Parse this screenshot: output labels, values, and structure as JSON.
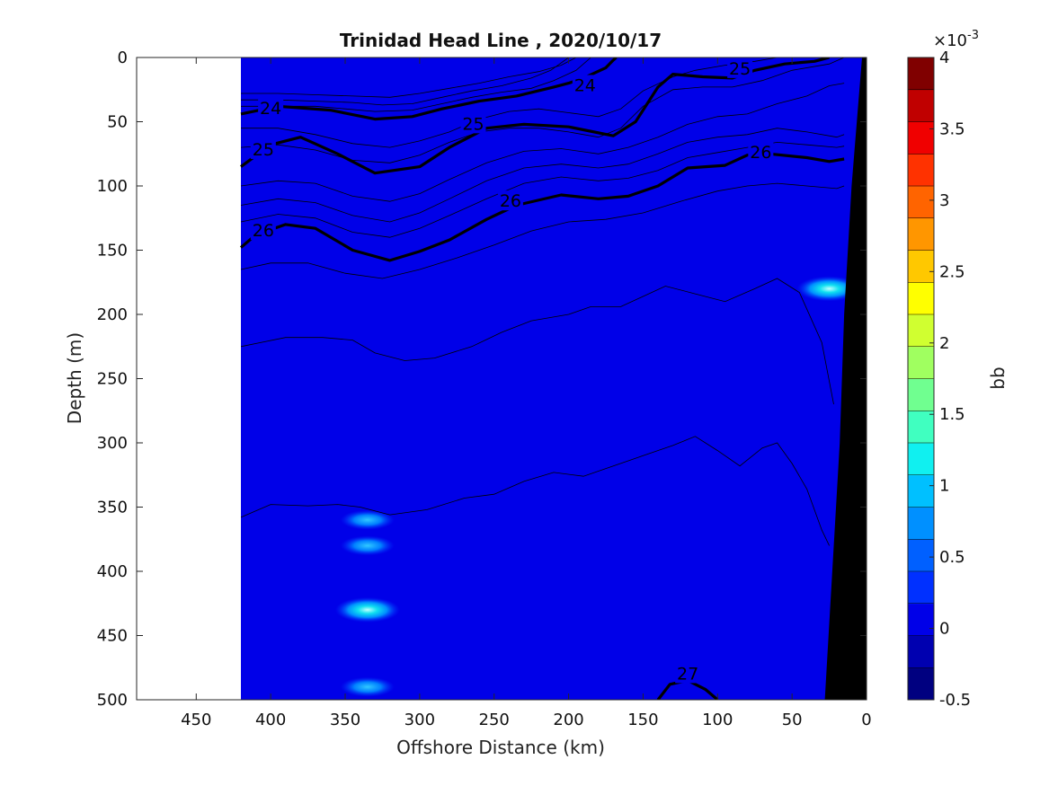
{
  "chart_data": {
    "type": "heatmap",
    "title": "Trinidad Head Line , 2020/10/17",
    "xlabel": "Offshore Distance (km)",
    "ylabel": "Depth (m)",
    "xlim": [
      490,
      0
    ],
    "ylim": [
      0,
      500
    ],
    "x_reversed": true,
    "y_reversed": true,
    "xticks": [
      450,
      400,
      350,
      300,
      250,
      200,
      150,
      100,
      50,
      0
    ],
    "yticks": [
      0,
      50,
      100,
      150,
      200,
      250,
      300,
      350,
      400,
      450,
      500
    ],
    "data_x_extent": [
      420,
      0
    ],
    "background_value_bb": 0.0002,
    "colorbar": {
      "label": "bb",
      "exponent_label": "×10",
      "exponent_power": "-3",
      "min": -0.5,
      "max": 4,
      "step": 0.25,
      "tick_values": [
        -0.5,
        0,
        0.5,
        1,
        1.5,
        2,
        2.5,
        3,
        3.5,
        4
      ],
      "tick_labels": [
        "-0.5",
        "0",
        "0.5",
        "1",
        "1.5",
        "2",
        "2.5",
        "3",
        "3.5",
        "4"
      ],
      "colors": [
        "#000080",
        "#0000b0",
        "#0000e8",
        "#0030ff",
        "#0060ff",
        "#0090ff",
        "#00c0ff",
        "#10f0f0",
        "#40ffc0",
        "#70ff90",
        "#a0ff60",
        "#d0ff30",
        "#ffff00",
        "#ffc800",
        "#ff9600",
        "#ff6400",
        "#ff3200",
        "#f00000",
        "#c00000",
        "#800000"
      ]
    },
    "hotspots": [
      {
        "x": 335,
        "depth": 360,
        "value": 0.8
      },
      {
        "x": 335,
        "depth": 380,
        "value": 0.6
      },
      {
        "x": 335,
        "depth": 430,
        "value": 1.2
      },
      {
        "x": 335,
        "depth": 490,
        "value": 0.6
      },
      {
        "x": 25,
        "depth": 180,
        "value": 1.0
      }
    ],
    "isopycnals": [
      {
        "level": "24",
        "bold": true,
        "points": [
          [
            420,
            44
          ],
          [
            395,
            38
          ],
          [
            360,
            41
          ],
          [
            330,
            48
          ],
          [
            305,
            46
          ],
          [
            285,
            40
          ],
          [
            260,
            34
          ],
          [
            235,
            30
          ],
          [
            210,
            23
          ],
          [
            200,
            20
          ],
          [
            190,
            16
          ],
          [
            175,
            8
          ],
          [
            170,
            2
          ],
          [
            168,
            0
          ]
        ]
      },
      {
        "level": "25",
        "bold": true,
        "points": [
          [
            420,
            85
          ],
          [
            400,
            68
          ],
          [
            380,
            62
          ],
          [
            355,
            75
          ],
          [
            330,
            90
          ],
          [
            300,
            85
          ],
          [
            280,
            70
          ],
          [
            255,
            55
          ],
          [
            230,
            52
          ],
          [
            200,
            54
          ],
          [
            170,
            61
          ],
          [
            155,
            50
          ],
          [
            140,
            23
          ],
          [
            130,
            13
          ],
          [
            110,
            15
          ],
          [
            90,
            16
          ],
          [
            75,
            10
          ],
          [
            55,
            5
          ],
          [
            35,
            3
          ],
          [
            25,
            0
          ]
        ]
      },
      {
        "level": "26",
        "bold": true,
        "points": [
          [
            420,
            148
          ],
          [
            410,
            138
          ],
          [
            390,
            130
          ],
          [
            370,
            133
          ],
          [
            345,
            150
          ],
          [
            320,
            158
          ],
          [
            300,
            151
          ],
          [
            280,
            142
          ],
          [
            255,
            126
          ],
          [
            235,
            115
          ],
          [
            205,
            107
          ],
          [
            180,
            110
          ],
          [
            160,
            108
          ],
          [
            140,
            100
          ],
          [
            120,
            86
          ],
          [
            95,
            84
          ],
          [
            80,
            76
          ],
          [
            65,
            75
          ],
          [
            40,
            78
          ],
          [
            25,
            81
          ],
          [
            15,
            79
          ]
        ]
      },
      {
        "level": "27",
        "bold": true,
        "points": [
          [
            140,
            500
          ],
          [
            132,
            488
          ],
          [
            120,
            485
          ],
          [
            108,
            492
          ],
          [
            100,
            500
          ]
        ]
      }
    ],
    "contours": [
      [
        [
          420,
          28
        ],
        [
          395,
          28
        ],
        [
          370,
          29
        ],
        [
          345,
          30
        ],
        [
          320,
          31
        ],
        [
          300,
          28
        ],
        [
          280,
          24
        ],
        [
          260,
          20
        ],
        [
          240,
          15
        ],
        [
          220,
          11
        ],
        [
          205,
          6
        ],
        [
          195,
          0
        ]
      ],
      [
        [
          420,
          33
        ],
        [
          395,
          33
        ],
        [
          370,
          34
        ],
        [
          345,
          35
        ],
        [
          325,
          37
        ],
        [
          305,
          36
        ],
        [
          285,
          31
        ],
        [
          265,
          26
        ],
        [
          245,
          22
        ],
        [
          225,
          16
        ],
        [
          212,
          10
        ],
        [
          200,
          0
        ]
      ],
      [
        [
          420,
          38
        ],
        [
          395,
          38
        ],
        [
          370,
          38
        ],
        [
          350,
          40
        ],
        [
          330,
          42
        ],
        [
          305,
          41
        ],
        [
          285,
          36
        ],
        [
          265,
          31
        ],
        [
          245,
          27
        ],
        [
          225,
          24
        ],
        [
          210,
          18
        ],
        [
          195,
          10
        ],
        [
          185,
          0
        ]
      ],
      [
        [
          420,
          55
        ],
        [
          395,
          55
        ],
        [
          370,
          60
        ],
        [
          345,
          67
        ],
        [
          320,
          70
        ],
        [
          300,
          65
        ],
        [
          280,
          58
        ],
        [
          260,
          48
        ],
        [
          240,
          42
        ],
        [
          220,
          40
        ],
        [
          200,
          43
        ],
        [
          180,
          46
        ],
        [
          165,
          40
        ],
        [
          150,
          26
        ],
        [
          130,
          15
        ],
        [
          115,
          10
        ],
        [
          95,
          6
        ],
        [
          75,
          3
        ],
        [
          60,
          0
        ]
      ],
      [
        [
          420,
          70
        ],
        [
          395,
          68
        ],
        [
          370,
          72
        ],
        [
          345,
          80
        ],
        [
          320,
          82
        ],
        [
          300,
          76
        ],
        [
          280,
          66
        ],
        [
          260,
          58
        ],
        [
          240,
          55
        ],
        [
          220,
          55
        ],
        [
          200,
          58
        ],
        [
          180,
          62
        ],
        [
          165,
          55
        ],
        [
          150,
          38
        ],
        [
          130,
          25
        ],
        [
          110,
          23
        ],
        [
          90,
          23
        ],
        [
          70,
          18
        ],
        [
          50,
          10
        ],
        [
          25,
          5
        ],
        [
          15,
          0
        ]
      ],
      [
        [
          420,
          100
        ],
        [
          395,
          96
        ],
        [
          370,
          98
        ],
        [
          345,
          108
        ],
        [
          320,
          112
        ],
        [
          300,
          106
        ],
        [
          280,
          95
        ],
        [
          255,
          82
        ],
        [
          230,
          73
        ],
        [
          205,
          71
        ],
        [
          180,
          75
        ],
        [
          160,
          70
        ],
        [
          140,
          62
        ],
        [
          120,
          52
        ],
        [
          100,
          46
        ],
        [
          80,
          44
        ],
        [
          60,
          36
        ],
        [
          40,
          30
        ],
        [
          25,
          22
        ],
        [
          15,
          20
        ]
      ],
      [
        [
          420,
          115
        ],
        [
          395,
          110
        ],
        [
          370,
          113
        ],
        [
          345,
          123
        ],
        [
          320,
          128
        ],
        [
          300,
          121
        ],
        [
          280,
          110
        ],
        [
          255,
          96
        ],
        [
          230,
          86
        ],
        [
          205,
          83
        ],
        [
          180,
          86
        ],
        [
          160,
          83
        ],
        [
          140,
          75
        ],
        [
          120,
          66
        ],
        [
          100,
          62
        ],
        [
          80,
          60
        ],
        [
          60,
          55
        ],
        [
          40,
          58
        ],
        [
          20,
          62
        ],
        [
          15,
          60
        ]
      ],
      [
        [
          420,
          128
        ],
        [
          395,
          122
        ],
        [
          370,
          125
        ],
        [
          345,
          136
        ],
        [
          320,
          140
        ],
        [
          300,
          133
        ],
        [
          280,
          123
        ],
        [
          255,
          110
        ],
        [
          230,
          98
        ],
        [
          205,
          93
        ],
        [
          180,
          96
        ],
        [
          160,
          94
        ],
        [
          140,
          88
        ],
        [
          120,
          78
        ],
        [
          100,
          74
        ],
        [
          80,
          70
        ],
        [
          60,
          66
        ],
        [
          40,
          68
        ],
        [
          20,
          70
        ],
        [
          15,
          69
        ]
      ],
      [
        [
          420,
          165
        ],
        [
          400,
          160
        ],
        [
          375,
          160
        ],
        [
          350,
          168
        ],
        [
          325,
          172
        ],
        [
          300,
          165
        ],
        [
          275,
          156
        ],
        [
          250,
          146
        ],
        [
          225,
          135
        ],
        [
          200,
          128
        ],
        [
          175,
          126
        ],
        [
          150,
          121
        ],
        [
          125,
          112
        ],
        [
          100,
          104
        ],
        [
          80,
          100
        ],
        [
          60,
          98
        ],
        [
          40,
          100
        ],
        [
          20,
          102
        ],
        [
          15,
          100
        ]
      ],
      [
        [
          420,
          225
        ],
        [
          390,
          218
        ],
        [
          365,
          218
        ],
        [
          345,
          220
        ],
        [
          330,
          230
        ],
        [
          310,
          236
        ],
        [
          290,
          234
        ],
        [
          265,
          225
        ],
        [
          245,
          214
        ],
        [
          225,
          205
        ],
        [
          200,
          200
        ],
        [
          185,
          194
        ],
        [
          165,
          194
        ],
        [
          150,
          186
        ],
        [
          135,
          178
        ],
        [
          115,
          184
        ],
        [
          95,
          190
        ],
        [
          75,
          180
        ],
        [
          60,
          172
        ],
        [
          45,
          183
        ],
        [
          30,
          222
        ],
        [
          22,
          270
        ]
      ],
      [
        [
          420,
          358
        ],
        [
          400,
          348
        ],
        [
          375,
          349
        ],
        [
          355,
          348
        ],
        [
          340,
          350
        ],
        [
          320,
          356
        ],
        [
          295,
          352
        ],
        [
          270,
          343
        ],
        [
          250,
          340
        ],
        [
          230,
          330
        ],
        [
          210,
          323
        ],
        [
          190,
          326
        ],
        [
          170,
          318
        ],
        [
          150,
          310
        ],
        [
          130,
          302
        ],
        [
          115,
          295
        ],
        [
          100,
          306
        ],
        [
          85,
          318
        ],
        [
          70,
          304
        ],
        [
          60,
          300
        ],
        [
          50,
          316
        ],
        [
          40,
          336
        ],
        [
          30,
          368
        ],
        [
          25,
          380
        ]
      ]
    ],
    "bottom_mask": [
      [
        0,
        0
      ],
      [
        0,
        500
      ],
      [
        28,
        500
      ],
      [
        23,
        400
      ],
      [
        18,
        300
      ],
      [
        15,
        200
      ],
      [
        10,
        100
      ],
      [
        3,
        0
      ]
    ],
    "inline_labels": [
      {
        "text": "24",
        "x": 400,
        "depth": 40
      },
      {
        "text": "24",
        "x": 189,
        "depth": 22
      },
      {
        "text": "25",
        "x": 405,
        "depth": 72
      },
      {
        "text": "25",
        "x": 264,
        "depth": 52
      },
      {
        "text": "25",
        "x": 85,
        "depth": 9
      },
      {
        "text": "26",
        "x": 405,
        "depth": 135
      },
      {
        "text": "26",
        "x": 239,
        "depth": 112
      },
      {
        "text": "26",
        "x": 71,
        "depth": 74
      },
      {
        "text": "27",
        "x": 120,
        "depth": 480
      }
    ]
  }
}
